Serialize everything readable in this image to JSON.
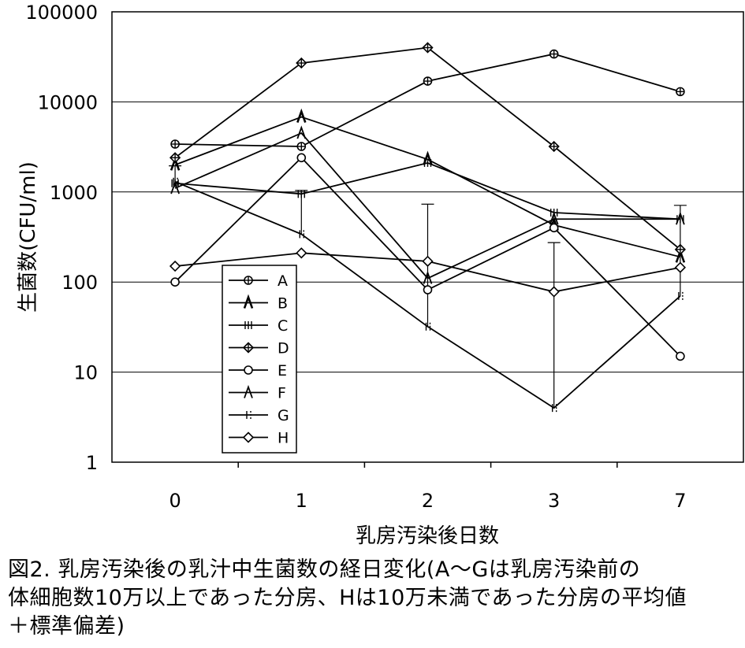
{
  "chart_data": {
    "type": "line",
    "yscale": "log",
    "ylim": [
      1,
      100000
    ],
    "yticks": [
      "1",
      "10",
      "100",
      "1000",
      "10000",
      "100000"
    ],
    "categories": [
      "0",
      "1",
      "2",
      "3",
      "7"
    ],
    "xlabel": "乳房汚染後日数",
    "ylabel": "生菌数(CFU/ml)",
    "grid": "horizontal",
    "legend": "inside-left",
    "series": [
      {
        "name": "A",
        "marker": "circle-plus",
        "values": [
          3400,
          3200,
          17000,
          34000,
          13000
        ]
      },
      {
        "name": "B",
        "marker": "caret",
        "values": [
          2000,
          6800,
          2300,
          430,
          190
        ]
      },
      {
        "name": "C",
        "marker": "triple-bar",
        "values": [
          1250,
          950,
          2100,
          590,
          500
        ]
      },
      {
        "name": "D",
        "marker": "diamond-plus",
        "values": [
          2400,
          27000,
          40000,
          3200,
          230
        ]
      },
      {
        "name": "E",
        "marker": "circle",
        "values": [
          100,
          2400,
          82,
          400,
          15
        ]
      },
      {
        "name": "F",
        "marker": "caret-open",
        "values": [
          1100,
          4500,
          110,
          500,
          500
        ]
      },
      {
        "name": "G",
        "marker": "double-bar",
        "values": [
          1300,
          340,
          32,
          4,
          70
        ],
        "error_plus": [
          650,
          700,
          700,
          270,
          640
        ]
      },
      {
        "name": "H",
        "marker": "diamond",
        "values": [
          150,
          210,
          170,
          78,
          145
        ]
      }
    ]
  },
  "caption": {
    "line1": "図2. 乳房汚染後の乳汁中生菌数の経日変化(A～Gは乳房汚染前の",
    "line2": "体細胞数10万以上であった分房、Hは10万未満であった分房の平均値",
    "line3": "＋標準偏差)"
  }
}
